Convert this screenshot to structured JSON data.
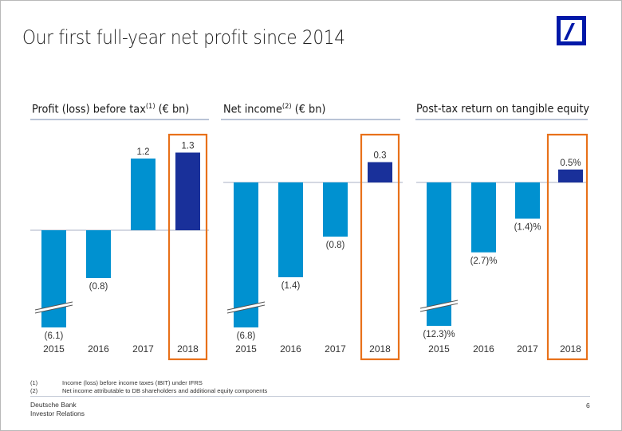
{
  "slide": {
    "title": "Our first full-year net profit since 2014",
    "logo": "deutsche-bank-logo",
    "page_number": "6",
    "footer": {
      "line1": "Deutsche Bank",
      "line2": "Investor Relations"
    },
    "footnotes": [
      {
        "num": "(1)",
        "text": "Income (loss) before income taxes (IBIT) under IFRS"
      },
      {
        "num": "(2)",
        "text": "Net income attributable to DB shareholders and additional equity components"
      }
    ],
    "colors": {
      "bar_prior": "#0091d0",
      "bar_highlight": "#19309a",
      "highlight_box": "#e8711a",
      "baseline": "#c5ccd8",
      "brand_blue": "#0018a8"
    }
  },
  "chart_data": [
    {
      "type": "bar",
      "title": "Profit (loss) before tax",
      "title_sup": "(1)",
      "title_unit": "(€ bn)",
      "categories": [
        "2015",
        "2016",
        "2017",
        "2018"
      ],
      "values": [
        -6.1,
        -0.8,
        1.2,
        1.3
      ],
      "labels": [
        "(6.1)",
        "(0.8)",
        "1.2",
        "1.3"
      ],
      "highlight": "2018",
      "axis_break": "2015",
      "xlabel": "",
      "ylabel": "",
      "grid": false
    },
    {
      "type": "bar",
      "title": "Net income",
      "title_sup": "(2)",
      "title_unit": "(€ bn)",
      "categories": [
        "2015",
        "2016",
        "2017",
        "2018"
      ],
      "values": [
        -6.8,
        -1.4,
        -0.8,
        0.3
      ],
      "labels": [
        "(6.8)",
        "(1.4)",
        "(0.8)",
        "0.3"
      ],
      "highlight": "2018",
      "axis_break": "2015",
      "xlabel": "",
      "ylabel": "",
      "grid": false
    },
    {
      "type": "bar",
      "title": "Post-tax return on tangible equity",
      "title_sup": "",
      "title_unit": "",
      "categories": [
        "2015",
        "2016",
        "2017",
        "2018"
      ],
      "values": [
        -12.3,
        -2.7,
        -1.4,
        0.5
      ],
      "labels": [
        "(12.3)%",
        "(2.7)%",
        "(1.4)%",
        "0.5%"
      ],
      "highlight": "2018",
      "axis_break": "2015",
      "xlabel": "",
      "ylabel": "",
      "grid": false
    }
  ]
}
